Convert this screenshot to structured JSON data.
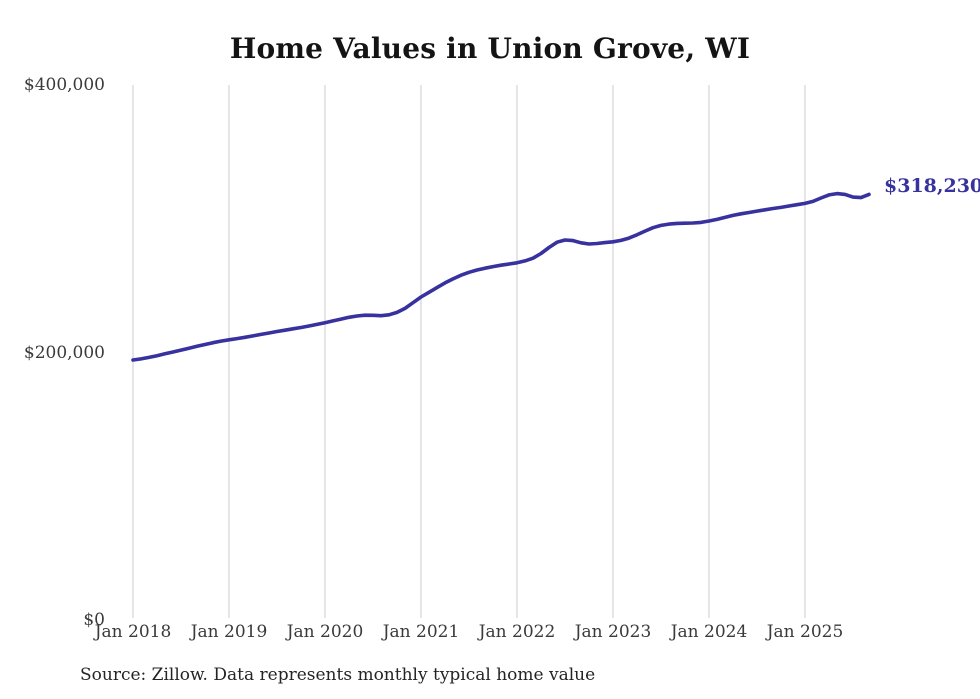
{
  "title": "Home Values in Union Grove, WI",
  "source_note": "Source: Zillow. Data represents monthly typical home value",
  "end_label": "$318,230",
  "colors": {
    "line": "#38329f",
    "end_label": "#38329f",
    "grid": "#cbcbcb",
    "title_text": "#141414",
    "axis_text": "#3a3a3a",
    "source_text": "#242424",
    "background": "#ffffff"
  },
  "chart_data": {
    "type": "line",
    "title": "Home Values in Union Grove, WI",
    "xlabel": "",
    "ylabel": "",
    "x_start_month": "2018-01",
    "x_end_month": "2025-09",
    "x_cadence": "monthly",
    "ylim": [
      0,
      400000
    ],
    "grid": "vertical-only",
    "legend": "none",
    "y_ticks": [
      {
        "value": 0,
        "label": "$0"
      },
      {
        "value": 200000,
        "label": "$200,000"
      },
      {
        "value": 400000,
        "label": "$400,000"
      }
    ],
    "x_ticks": [
      {
        "month_index": 0,
        "label": "Jan 2018"
      },
      {
        "month_index": 12,
        "label": "Jan 2019"
      },
      {
        "month_index": 24,
        "label": "Jan 2020"
      },
      {
        "month_index": 36,
        "label": "Jan 2021"
      },
      {
        "month_index": 48,
        "label": "Jan 2022"
      },
      {
        "month_index": 60,
        "label": "Jan 2023"
      },
      {
        "month_index": 72,
        "label": "Jan 2024"
      },
      {
        "month_index": 84,
        "label": "Jan 2025"
      }
    ],
    "series": [
      {
        "name": "Typical home value",
        "unit": "USD",
        "final_value": 318230,
        "final_value_label": "$318,230",
        "values": [
          194400,
          195200,
          196300,
          197600,
          199000,
          200400,
          201800,
          203200,
          204600,
          206000,
          207300,
          208500,
          209500,
          210400,
          211400,
          212400,
          213500,
          214600,
          215700,
          216700,
          217700,
          218700,
          219800,
          221000,
          222300,
          223600,
          225000,
          226300,
          227300,
          227900,
          227800,
          227500,
          228200,
          230000,
          233000,
          237200,
          241500,
          245000,
          248500,
          252000,
          255000,
          257800,
          260000,
          261700,
          263000,
          264200,
          265300,
          266200,
          267100,
          268500,
          270500,
          274000,
          278500,
          282500,
          284100,
          283700,
          282000,
          281100,
          281500,
          282200,
          282800,
          283800,
          285500,
          288000,
          290800,
          293300,
          295000,
          296000,
          296500,
          296700,
          296800,
          297300,
          298300,
          299500,
          301000,
          302500,
          303700,
          304700,
          305700,
          306700,
          307700,
          308500,
          309500,
          310500,
          311500,
          313000,
          315500,
          317800,
          318800,
          318200,
          316200,
          315800,
          318230
        ]
      }
    ]
  }
}
